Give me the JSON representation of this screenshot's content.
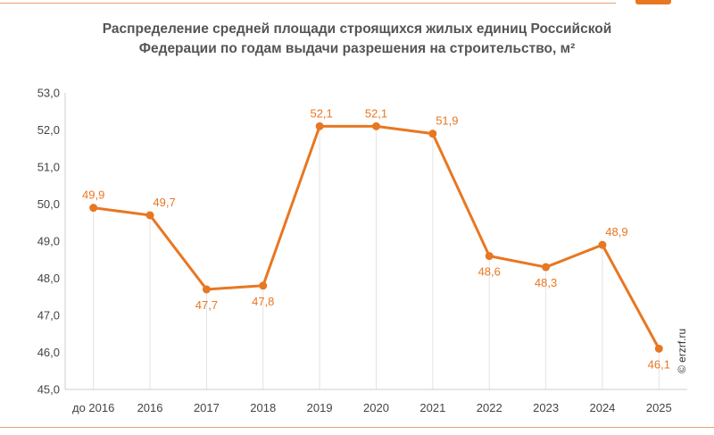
{
  "title": "Распределение средней площади строящихся жилых единиц Российской Федерации по годам выдачи разрешения на строительство, м²",
  "watermark": "© erzrf.ru",
  "colors": {
    "accent": "#e87722",
    "grid": "#e3e3e3",
    "text": "#555555",
    "rule": "#e8a070"
  },
  "chart_data": {
    "type": "line",
    "title": "Распределение средней площади строящихся жилых единиц Российской Федерации по годам выдачи разрешения на строительство, м²",
    "xlabel": "",
    "ylabel": "",
    "categories": [
      "до 2016",
      "2016",
      "2017",
      "2018",
      "2019",
      "2020",
      "2021",
      "2022",
      "2023",
      "2024",
      "2025"
    ],
    "series": [
      {
        "values": [
          49.9,
          49.7,
          47.7,
          47.8,
          52.1,
          52.1,
          51.9,
          48.6,
          48.3,
          48.9,
          46.1
        ],
        "labels": [
          "49,9",
          "49,7",
          "47,7",
          "47,8",
          "52,1",
          "52,1",
          "51,9",
          "48,6",
          "48,3",
          "48,9",
          "46,1"
        ],
        "label_side": [
          "above",
          "above",
          "below",
          "below",
          "above",
          "above",
          "above",
          "below",
          "below",
          "above",
          "below"
        ]
      }
    ],
    "ylim": [
      45,
      53
    ],
    "yticks": [
      "45,0",
      "46,0",
      "47,0",
      "48,0",
      "49,0",
      "50,0",
      "51,0",
      "52,0",
      "53,0"
    ],
    "grid": "vertical-lines-at-points",
    "legend": "none"
  }
}
